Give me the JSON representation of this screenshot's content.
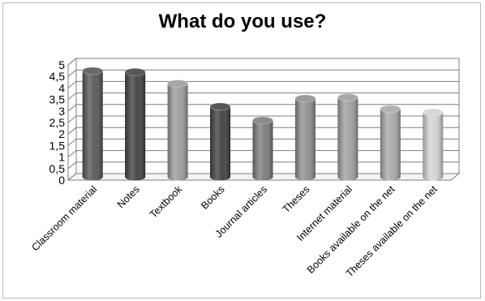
{
  "chart_data": {
    "type": "bar",
    "title": "What do you use?",
    "xlabel": "",
    "ylabel": "",
    "ylim": [
      0,
      5
    ],
    "y_ticks": [
      "0",
      "0,5",
      "1",
      "1,5",
      "2",
      "2,5",
      "3",
      "3,5",
      "4",
      "4,5",
      "5"
    ],
    "y_tick_values": [
      0,
      0.5,
      1,
      1.5,
      2,
      2.5,
      3,
      3.5,
      4,
      4.5,
      5
    ],
    "grid": true,
    "legend": "none",
    "style": "3d-cylinder",
    "categories": [
      "Classroom material",
      "Notes",
      "Textbook",
      "Books",
      "Journal articles",
      "Theses",
      "Internet material",
      "Books available on the net",
      "Theses available on the net"
    ],
    "values": [
      4.6,
      4.55,
      4.05,
      3.05,
      2.45,
      3.4,
      3.45,
      2.95,
      2.8
    ],
    "colors": [
      "#555555",
      "#404040",
      "#9a9a9a",
      "#3f3f3f",
      "#7a7a7a",
      "#8e8e8e",
      "#9e9e9e",
      "#a8a8a8",
      "#d2d2d2"
    ]
  }
}
